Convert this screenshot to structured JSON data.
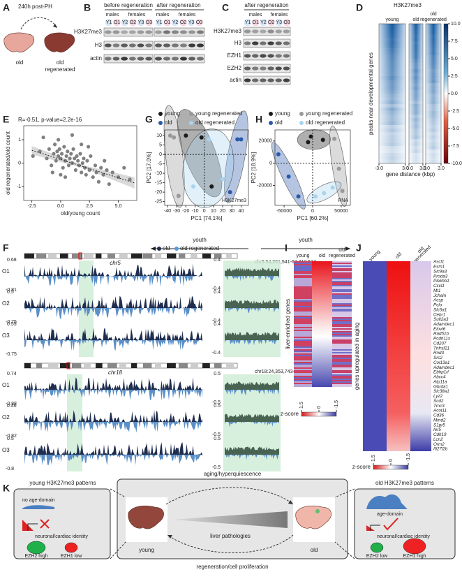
{
  "panels": {
    "a": {
      "letter": "A",
      "title": "240h post-PH",
      "old": "old",
      "regenerated": [
        "old",
        "regenerated"
      ]
    },
    "b": {
      "letter": "B",
      "groups": [
        "before regeneration",
        "after regeneration"
      ],
      "sexes": [
        "males",
        "females",
        "males",
        "females"
      ],
      "lanes": [
        "Y1",
        "O1",
        "Y2",
        "O2",
        "Y3",
        "O3",
        "Y1",
        "O1",
        "Y2",
        "O2",
        "Y3",
        "O3"
      ],
      "rows": [
        "H3K27me3",
        "H3",
        "actin"
      ]
    },
    "c": {
      "letter": "C",
      "group": "after regeneration",
      "sexes": [
        "males",
        "females"
      ],
      "lanes": [
        "Y1",
        "O1",
        "Y2",
        "O2",
        "Y3",
        "O3"
      ],
      "rows": [
        "H3K27me3",
        "H3",
        "EZH1",
        "EZH2",
        "actin"
      ]
    },
    "d": {
      "letter": "D",
      "title": "H3K27me3",
      "columns": [
        [
          "young"
        ],
        [
          "old"
        ],
        [
          "old",
          "regenerated"
        ]
      ],
      "ylabel": "peaks near developmental genes",
      "xticks": [
        {
          "value": -3,
          "label": "-3.0"
        },
        {
          "value": 3,
          "label": "3.0"
        }
      ],
      "xlabel": "gene distance (kbp)",
      "colorbar": [
        {
          "value": 10,
          "label": "10.0"
        },
        {
          "value": 7.5,
          "label": "7.5"
        },
        {
          "value": 5,
          "label": "5.0"
        },
        {
          "value": 2.5,
          "label": "2.5"
        },
        {
          "value": 0,
          "label": "0.0"
        },
        {
          "value": -2.5,
          "label": "-2.5"
        },
        {
          "value": -5,
          "label": "-5.0"
        },
        {
          "value": -7.5,
          "label": "-7.5"
        },
        {
          "value": -10,
          "label": "-10.0"
        }
      ]
    },
    "f": {
      "letter": "F",
      "legend": [
        "old",
        "old regenerated"
      ],
      "tracks": [
        {
          "chrom": "chr5",
          "region": "chr5:54,201,541-62,212,513",
          "rows": [
            {
              "label": "O1",
              "max": 0.68,
              "min": -0.81,
              "zoom_max": 0.4,
              "zoom_min": -0.4
            },
            {
              "label": "O2",
              "max": 0.5,
              "min": -0.75,
              "zoom_max": 0.4,
              "zoom_min": -0.4
            },
            {
              "label": "O3",
              "max": 0.55,
              "min": -0.75,
              "zoom_max": 0.4,
              "zoom_min": -0.4
            }
          ]
        },
        {
          "chrom": "chr18",
          "region": "chr18:24,353,743-33,132,050",
          "rows": [
            {
              "label": "O1",
              "max": 0.74,
              "min": -0.88,
              "zoom_max": 0.5,
              "zoom_min": -0.5
            },
            {
              "label": "O2",
              "max": 0.46,
              "min": -0.82,
              "zoom_max": 0.5,
              "zoom_min": -0.5
            },
            {
              "label": "O3",
              "max": 0.5,
              "min": -0.8,
              "zoom_max": 0.5,
              "zoom_min": -0.5
            }
          ]
        }
      ]
    },
    "i": {
      "letter": "I",
      "columns": [
        [
          "young"
        ],
        [
          "old"
        ],
        [
          "old",
          "regenerated"
        ]
      ],
      "ylabel": "liver-enriched genes",
      "colorbar_label": "z-score",
      "colorbar": [
        1.5,
        0,
        -1.5
      ]
    },
    "j": {
      "letter": "J",
      "columns": [
        [
          "young"
        ],
        [
          "old"
        ],
        [
          "old",
          "regenerated"
        ]
      ],
      "ylabel": "genes upregulated in aging",
      "colorbar_label": "z-score",
      "colorbar": [
        1.5,
        0,
        -1.5
      ],
      "genes": [
        "Ascl1",
        "Esm1",
        "Slc9a3",
        "Proda3",
        "Plekhb1",
        "Cxcl1",
        "Mt1",
        "Jchain",
        "Acsp",
        "Pclo",
        "Slc5a1",
        "Cebr1",
        "Sult2a3",
        "Adamdec1",
        "Elovl6",
        "Rad51b",
        "Pcdh11x",
        "Cd207",
        "Tnfrsf21",
        "Rnd3",
        "Src2",
        "Col13a1",
        "Adamdec1",
        "Ebhp1rl",
        "Abcc4",
        "Atp11a",
        "Gbrda1",
        "Slc38a1",
        "Lyz2",
        "Scd2",
        "Tmc3",
        "Acot11",
        "Cd36",
        "Mmd2",
        "S1pr5",
        "Ier5",
        "Cdh19",
        "Lcn2",
        "Orm2",
        "Ifi27l2b"
      ]
    },
    "k": {
      "letter": "K",
      "left_title": "young H3K27me3 patterns",
      "left_domain": "no age-domain",
      "left_identity": "neuronal/cardiac identity",
      "left_ezh2": "EZH2 high",
      "left_ezh1": "EZH1 low",
      "top": "aging/hyperquiescence",
      "middle": "liver pathologies",
      "young": "young",
      "old": "old",
      "right_title": "old H3K27me3 patterns",
      "right_domain": "age-domain",
      "right_identity": "neuronal/cardiac identity",
      "right_ezh2": "EZH2 low",
      "right_ezh1": "EZH1 high",
      "bottom": "regeneration/cell proliferation"
    }
  },
  "chart_data": [
    {
      "type": "scatter",
      "panel": "E",
      "title": "R=-0.51, p-value=2.2e-16",
      "xlabel": "old/young count",
      "ylabel": "old regenerated/old count",
      "color": "#808080",
      "x": [
        -2.4,
        -1.8,
        -1.5,
        -1.2,
        -1.0,
        -0.8,
        -0.6,
        -0.5,
        -0.4,
        -0.3,
        -0.2,
        -0.1,
        0,
        0.1,
        0.2,
        0.3,
        0.4,
        0.5,
        0.6,
        0.7,
        0.8,
        0.9,
        1.0,
        1.1,
        1.2,
        1.3,
        1.4,
        1.5,
        1.6,
        1.7,
        1.8,
        1.9,
        2.0,
        2.1,
        2.2,
        2.3,
        2.5,
        2.6,
        2.8,
        3.0,
        3.1,
        3.3,
        3.5,
        3.7,
        4.0,
        4.2,
        4.5,
        5.0,
        5.5,
        6.0,
        1.0,
        0.4,
        -0.7,
        2.4,
        0.0,
        3.8,
        1.8,
        -0.2
      ],
      "values": [
        0.3,
        0.5,
        1.1,
        0.2,
        0.6,
        -0.1,
        0.4,
        0.8,
        0.1,
        0.5,
        0.3,
        0.6,
        0.2,
        0.4,
        -0.2,
        0.7,
        0.1,
        0.3,
        0.5,
        -0.1,
        0.2,
        0.4,
        0.0,
        0.6,
        0.2,
        -0.3,
        0.3,
        0.1,
        -0.1,
        0.4,
        -0.4,
        0.0,
        0.2,
        -0.2,
        -0.5,
        0.1,
        -0.3,
        0.3,
        -0.6,
        -0.1,
        -0.4,
        -0.8,
        -0.2,
        -0.5,
        -0.3,
        -0.9,
        -0.4,
        -0.6,
        -0.2,
        -0.7,
        1.2,
        -0.6,
        -0.4,
        0.7,
        -0.5,
        0.1,
        0.8,
        1.0
      ],
      "fit": {
        "x": [
          -2.5,
          6.4
        ],
        "values": [
          0.55,
          -0.85
        ]
      },
      "xlim": [
        -3.2,
        6.6
      ],
      "xticks": [
        -2.5,
        {
          "value": 0,
          "label": "0.0"
        },
        2.5,
        {
          "value": 5,
          "label": "5.0"
        }
      ],
      "ylim": [
        -1.6,
        1.6
      ],
      "yticks": [
        -1,
        0,
        1
      ]
    },
    {
      "type": "pca",
      "panel": "G",
      "xlabel": "PC1 [74.1%]",
      "ylabel": "PC2 [17.0%]",
      "annotation": "H3K27me3",
      "arrow_label": "youth",
      "arrow": "left",
      "series": [
        {
          "name": "young",
          "color": "#1a1a1a",
          "x": [
            -20,
            -3,
            8
          ],
          "values": [
            10,
            9,
            -17
          ]
        },
        {
          "name": "young regenerated",
          "color": "#999999",
          "x": [
            -37,
            -33,
            -28
          ],
          "values": [
            10,
            9,
            -22
          ]
        },
        {
          "name": "old",
          "color": "#2b5aa8",
          "x": [
            36,
            40,
            28
          ],
          "values": [
            8,
            8,
            -20
          ]
        },
        {
          "name": "old regenerated",
          "color": "#a9d3ee",
          "x": [
            5,
            20,
            -12
          ],
          "values": [
            8,
            -13,
            -17
          ]
        }
      ],
      "xlim": [
        -43,
        48
      ],
      "xticks": [
        -40,
        -30,
        -20,
        -10,
        0,
        10,
        20,
        30,
        40
      ],
      "ylim": [
        -27,
        13
      ],
      "yticks": [
        10,
        5,
        0,
        -5,
        -10,
        -15,
        -20,
        -25
      ]
    },
    {
      "type": "pca",
      "panel": "H",
      "xlabel": "PC1 [60.2%]",
      "ylabel": "PC2 [18.9%]",
      "annotation": "RNA",
      "arrow_label": "youth",
      "arrow": "right",
      "series": [
        {
          "name": "young",
          "color": "#1a1a1a",
          "x": [
            -3000,
            -8000,
            18000
          ],
          "values": [
            24000,
            19000,
            21000
          ]
        },
        {
          "name": "young regenerated",
          "color": "#999999",
          "x": [
            38000,
            46000,
            52000
          ],
          "values": [
            22000,
            -5000,
            -25000
          ]
        },
        {
          "name": "old",
          "color": "#2b5aa8",
          "x": [
            -60000,
            -42000,
            -25000
          ],
          "values": [
            8000,
            -12000,
            -30000
          ]
        },
        {
          "name": "old regenerated",
          "color": "#a9d3ee",
          "x": [
            5000,
            20000,
            35000
          ],
          "values": [
            -30000,
            -27000,
            -22000
          ]
        }
      ],
      "xlim": [
        -66000,
        66000
      ],
      "xticks": [
        -50000,
        0,
        50000
      ],
      "ylim": [
        -38000,
        30000
      ],
      "yticks": [
        20000,
        0,
        -20000
      ]
    }
  ]
}
